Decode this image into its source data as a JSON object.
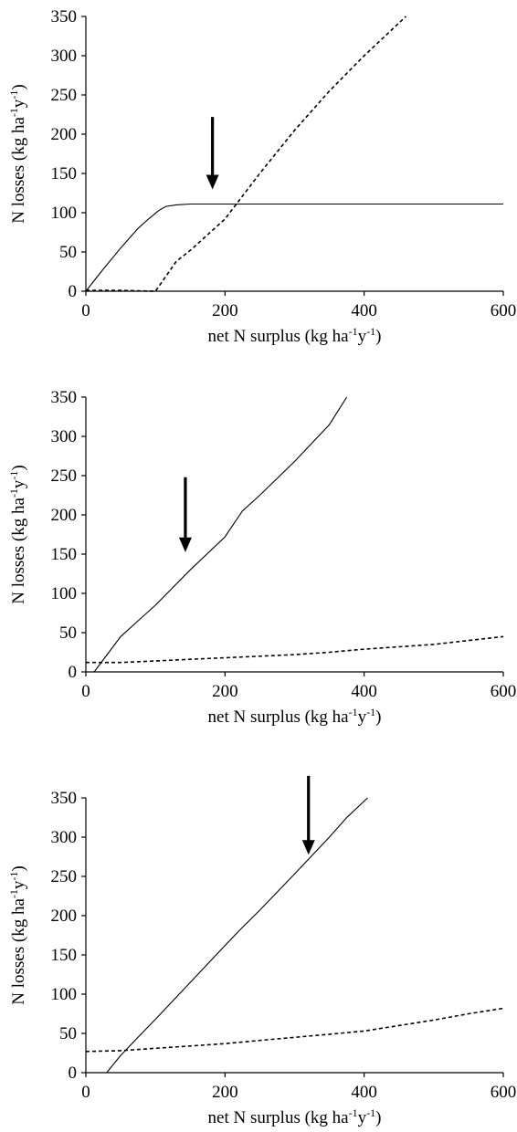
{
  "chart_data": [
    {
      "type": "line",
      "xlim": [
        0,
        600
      ],
      "ylim": [
        0,
        350
      ],
      "xticks": [
        0,
        200,
        400,
        600
      ],
      "yticks": [
        0,
        50,
        100,
        150,
        200,
        250,
        300,
        350
      ],
      "xlabel": {
        "base": "net N surplus (kg ha",
        "sup1": "-1",
        "mid": "y",
        "sup2": "-1",
        "end": ")"
      },
      "ylabel": {
        "base": "N losses (kg ha",
        "sup1": "-1",
        "mid": "y",
        "sup2": "-1",
        "end": ")"
      },
      "grid": false,
      "series": [
        {
          "style": "solid",
          "x": [
            0,
            25,
            50,
            60,
            75,
            90,
            105,
            115,
            130,
            150,
            200,
            300,
            400,
            500,
            600
          ],
          "y": [
            0,
            28,
            55,
            65,
            80,
            92,
            103,
            108,
            110,
            111,
            111,
            111,
            111,
            111,
            111
          ]
        },
        {
          "style": "dashed",
          "x": [
            0,
            50,
            100,
            130,
            150,
            200,
            250,
            300,
            350,
            400,
            460
          ],
          "y": [
            1,
            1,
            0,
            38,
            52,
            92,
            150,
            205,
            255,
            300,
            350
          ]
        }
      ],
      "arrow": {
        "x": 182,
        "y_start": 222,
        "y_end": 132
      }
    },
    {
      "type": "line",
      "xlim": [
        0,
        600
      ],
      "ylim": [
        0,
        350
      ],
      "xticks": [
        0,
        200,
        400,
        600
      ],
      "yticks": [
        0,
        50,
        100,
        150,
        200,
        250,
        300,
        350
      ],
      "xlabel": {
        "base": "net N surplus (kg ha",
        "sup1": "-1",
        "mid": "y",
        "sup2": "-1",
        "end": ")"
      },
      "ylabel": {
        "base": "N losses (kg ha",
        "sup1": "-1",
        "mid": "y",
        "sup2": "-1",
        "end": ")"
      },
      "grid": false,
      "series": [
        {
          "style": "solid",
          "x": [
            12,
            50,
            75,
            100,
            150,
            200,
            225,
            250,
            300,
            350,
            375
          ],
          "y": [
            0,
            45,
            65,
            85,
            130,
            172,
            205,
            225,
            268,
            315,
            350
          ]
        },
        {
          "style": "dashed",
          "x": [
            0,
            50,
            100,
            150,
            200,
            250,
            300,
            350,
            400,
            450,
            500,
            550,
            600
          ],
          "y": [
            12,
            12,
            14,
            16,
            18,
            20,
            22,
            25,
            29,
            32,
            35,
            40,
            45
          ]
        }
      ],
      "arrow": {
        "x": 143,
        "y_start": 248,
        "y_end": 155
      }
    },
    {
      "type": "line",
      "xlim": [
        0,
        600
      ],
      "ylim": [
        0,
        350
      ],
      "xticks": [
        0,
        200,
        400,
        600
      ],
      "yticks": [
        0,
        50,
        100,
        150,
        200,
        250,
        300,
        350
      ],
      "xlabel": {
        "base": "net N surplus (kg ha",
        "sup1": "-1",
        "mid": "y",
        "sup2": "-1",
        "end": ")"
      },
      "ylabel": {
        "base": "N losses (kg ha",
        "sup1": "-1",
        "mid": "y",
        "sup2": "-1",
        "end": ")"
      },
      "grid": false,
      "series": [
        {
          "style": "solid",
          "x": [
            30,
            50,
            75,
            100,
            150,
            200,
            225,
            250,
            300,
            350,
            375,
            405
          ],
          "y": [
            0,
            22,
            45,
            68,
            115,
            162,
            185,
            207,
            253,
            300,
            325,
            350
          ]
        },
        {
          "style": "dashed",
          "x": [
            0,
            50,
            100,
            150,
            200,
            250,
            300,
            350,
            400,
            450,
            500,
            550,
            600
          ],
          "y": [
            27,
            28,
            31,
            34,
            37,
            41,
            45,
            49,
            53,
            60,
            67,
            75,
            82
          ]
        }
      ],
      "arrow": {
        "x": 320,
        "y_start": 378,
        "y_end": 280
      }
    }
  ]
}
